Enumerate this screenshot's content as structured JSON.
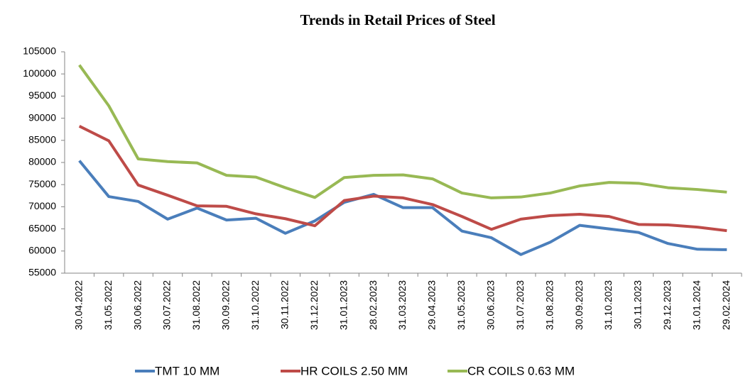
{
  "chart_data": {
    "type": "line",
    "title": "Trends in Retail Prices of Steel",
    "categories": [
      "30.04.2022",
      "31.05.2022",
      "30.06.2022",
      "30.07.2022",
      "31.08.2022",
      "30.09.2022",
      "31.10.2022",
      "30.11.2022",
      "31.12.2022",
      "31.01.2023",
      "28.02.2023",
      "31.03.2023",
      "29.04.2023",
      "31.05.2023",
      "30.06.2023",
      "31.07.2023",
      "31.08.2023",
      "30.09.2023",
      "31.10.2023",
      "30.11.2023",
      "29.12.2023",
      "31.01.2024",
      "29.02.2024"
    ],
    "series": [
      {
        "name": "TMT 10 MM",
        "color": "#4a7ebb",
        "values": [
          80400,
          72300,
          71200,
          67200,
          69700,
          67000,
          67400,
          64000,
          66800,
          71000,
          72800,
          69800,
          69800,
          64500,
          63000,
          59200,
          62000,
          65800,
          65000,
          64200,
          61700,
          60400,
          60300
        ]
      },
      {
        "name": "HR COILS 2.50 MM",
        "color": "#be4b48",
        "values": [
          88200,
          84900,
          74900,
          72600,
          70200,
          70100,
          68400,
          67300,
          65700,
          71400,
          72400,
          72000,
          70500,
          67800,
          64900,
          67200,
          68000,
          68300,
          67800,
          66000,
          65900,
          65400,
          64600
        ]
      },
      {
        "name": "CR COILS 0.63 MM",
        "color": "#98b954",
        "values": [
          102000,
          92800,
          80800,
          80200,
          79900,
          77100,
          76700,
          74300,
          72100,
          76600,
          77100,
          77200,
          76300,
          73100,
          72000,
          72200,
          73100,
          74700,
          75500,
          75300,
          74300,
          73900,
          73300
        ]
      }
    ],
    "ylim": [
      55000,
      105000
    ],
    "yticks": [
      55000,
      60000,
      65000,
      70000,
      75000,
      80000,
      85000,
      90000,
      95000,
      100000,
      105000
    ],
    "grid": false,
    "legend": "bottom"
  }
}
